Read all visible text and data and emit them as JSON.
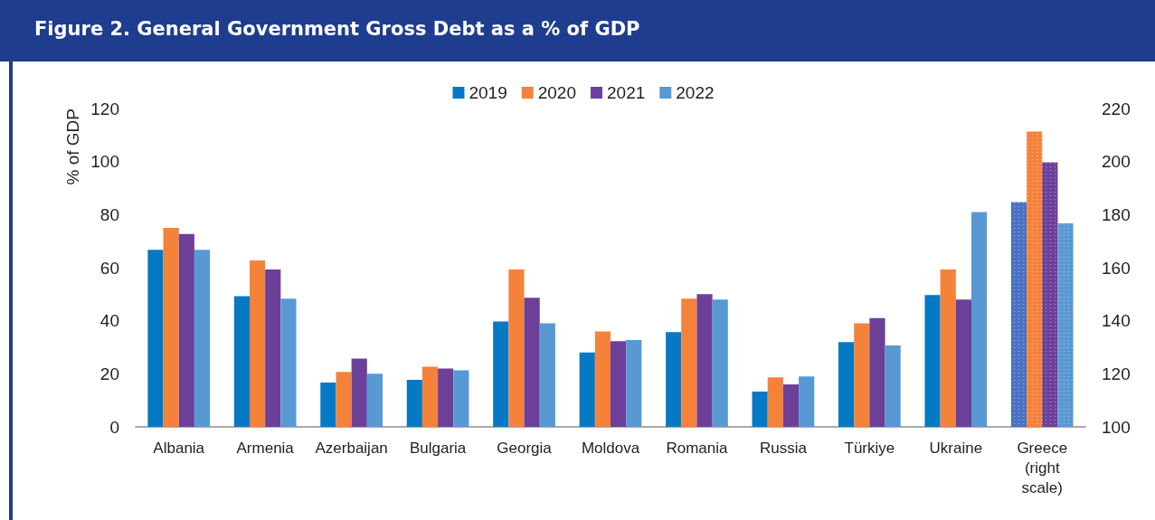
{
  "chart_data": {
    "type": "bar",
    "title": "Figure 2. General Government Gross Debt as a % of GDP",
    "ylabel": "% of GDP",
    "categories": [
      "Albania",
      "Armenia",
      "Azerbaijan",
      "Bulgaria",
      "Georgia",
      "Moldova",
      "Romania",
      "Russia",
      "Türkiye",
      "Ukraine",
      "Greece\n(right\nscale)"
    ],
    "series": [
      {
        "name": "2019",
        "color": "#0579c4",
        "values": [
          66.7,
          49.3,
          16.7,
          17.7,
          39.7,
          28,
          35.7,
          13.3,
          32,
          49.7,
          null
        ]
      },
      {
        "name": "2020",
        "color": "#f5823b",
        "values": [
          75,
          62.7,
          20.7,
          22.7,
          59.3,
          36,
          48.3,
          18.7,
          39,
          59.3,
          null
        ]
      },
      {
        "name": "2021",
        "color": "#6c4098",
        "values": [
          72.7,
          59.3,
          25.7,
          22,
          48.7,
          32.3,
          50,
          16,
          41,
          48,
          null
        ]
      },
      {
        "name": "2022",
        "color": "#5899d4",
        "values": [
          66.7,
          48.3,
          20,
          21.3,
          39,
          32.7,
          48,
          19,
          30.7,
          81,
          null
        ]
      },
      {
        "color": "#4a72c2",
        "axis": "y2",
        "values": [
          null,
          null,
          null,
          null,
          null,
          null,
          null,
          null,
          null,
          null,
          184.7
        ]
      },
      {
        "color": "#f5823b",
        "axis": "y2",
        "values": [
          null,
          null,
          null,
          null,
          null,
          null,
          null,
          null,
          null,
          null,
          211.3
        ]
      },
      {
        "color": "#6c4098",
        "axis": "y2",
        "values": [
          null,
          null,
          null,
          null,
          null,
          null,
          null,
          null,
          null,
          null,
          199.7
        ]
      },
      {
        "color": "#5899d4",
        "axis": "y2",
        "values": [
          null,
          null,
          null,
          null,
          null,
          null,
          null,
          null,
          null,
          null,
          176.7
        ]
      }
    ],
    "ylim": [
      0,
      120
    ],
    "yticks": [
      0,
      20,
      40,
      60,
      80,
      100,
      120
    ],
    "y2lim": [
      100,
      220
    ],
    "y2ticks": [
      100,
      120,
      140,
      160,
      180,
      200,
      220
    ],
    "grid": false,
    "legend": "top"
  }
}
